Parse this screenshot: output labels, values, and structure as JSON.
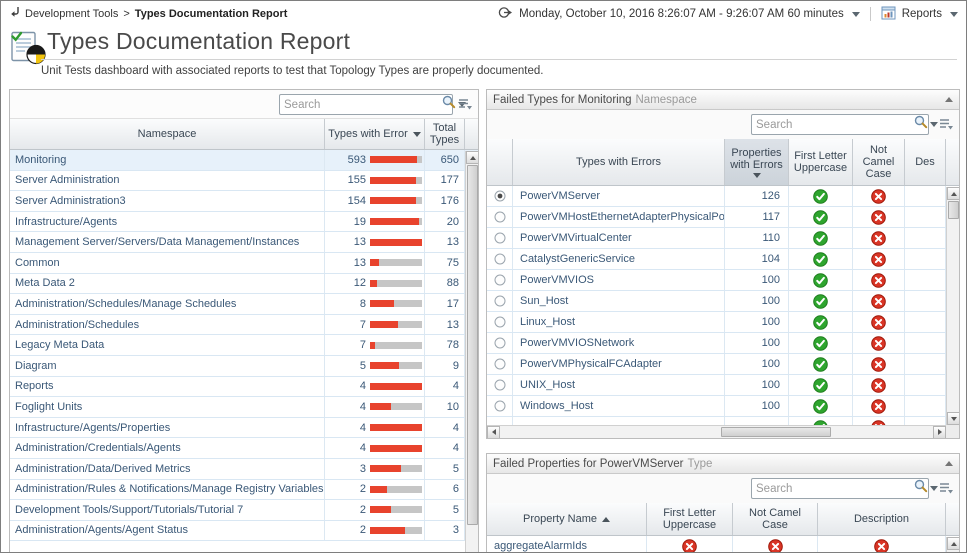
{
  "colors": {
    "bar_red": "#e8432d",
    "bar_track": "#c6c6c6",
    "pass_green": "#2ea52e",
    "fail_red": "#d93526",
    "selected_row": "#e7f1fa"
  },
  "breadcrumb": {
    "section": "Development Tools",
    "separator": ">",
    "page": "Types Documentation Report"
  },
  "topbar": {
    "time_range": "Monday, October 10, 2016 8:26:07 AM - 9:26:07 AM 60 minutes",
    "reports": "Reports"
  },
  "header": {
    "title": "Types Documentation Report",
    "subtitle": "Unit Tests dashboard with associated reports to test that Topology Types are properly documented."
  },
  "left_panel": {
    "search_placeholder": "Search",
    "columns": {
      "namespace": "Namespace",
      "errors": "Types with Error",
      "total_line1": "Total",
      "total_line2": "Types"
    },
    "rows": [
      {
        "namespace": "Monitoring",
        "errors": 593,
        "total": 650,
        "selected": true
      },
      {
        "namespace": "Server Administration",
        "errors": 155,
        "total": 177,
        "selected": false
      },
      {
        "namespace": "Server Administration3",
        "errors": 154,
        "total": 176,
        "selected": false
      },
      {
        "namespace": "Infrastructure/Agents",
        "errors": 19,
        "total": 20,
        "selected": false
      },
      {
        "namespace": "Management Server/Servers/Data Management/Instances",
        "errors": 13,
        "total": 13,
        "selected": false
      },
      {
        "namespace": "Common",
        "errors": 13,
        "total": 75,
        "selected": false
      },
      {
        "namespace": "Meta Data 2",
        "errors": 12,
        "total": 88,
        "selected": false
      },
      {
        "namespace": "Administration/Schedules/Manage Schedules",
        "errors": 8,
        "total": 17,
        "selected": false
      },
      {
        "namespace": "Administration/Schedules",
        "errors": 7,
        "total": 13,
        "selected": false
      },
      {
        "namespace": "Legacy Meta Data",
        "errors": 7,
        "total": 78,
        "selected": false
      },
      {
        "namespace": "Diagram",
        "errors": 5,
        "total": 9,
        "selected": false
      },
      {
        "namespace": "Reports",
        "errors": 4,
        "total": 4,
        "selected": false
      },
      {
        "namespace": "Foglight Units",
        "errors": 4,
        "total": 10,
        "selected": false
      },
      {
        "namespace": "Infrastructure/Agents/Properties",
        "errors": 4,
        "total": 4,
        "selected": false
      },
      {
        "namespace": "Administration/Credentials/Agents",
        "errors": 4,
        "total": 4,
        "selected": false
      },
      {
        "namespace": "Administration/Data/Derived Metrics",
        "errors": 3,
        "total": 5,
        "selected": false
      },
      {
        "namespace": "Administration/Rules & Notifications/Manage Registry Variables",
        "errors": 2,
        "total": 6,
        "selected": false
      },
      {
        "namespace": "Development Tools/Support/Tutorials/Tutorial 7",
        "errors": 2,
        "total": 5,
        "selected": false
      },
      {
        "namespace": "Administration/Agents/Agent Status",
        "errors": 2,
        "total": 3,
        "selected": false
      }
    ]
  },
  "failed_types": {
    "title": "Failed Types for Monitoring",
    "title_suffix": "Namespace",
    "search_placeholder": "Search",
    "columns": {
      "types": "Types with Errors",
      "props_line1": "Properties",
      "props_line2": "with Errors",
      "first_line1": "First Letter",
      "first_line2": "Uppercase",
      "camel_line1": "Not Camel",
      "camel_line2": "Case",
      "desc": "Des"
    },
    "rows": [
      {
        "name": "PowerVMServer",
        "props": 126,
        "first": "pass",
        "camel": "fail",
        "selected": true
      },
      {
        "name": "PowerVMHostEthernetAdapterPhysicalPort",
        "props": 117,
        "first": "pass",
        "camel": "fail",
        "selected": false
      },
      {
        "name": "PowerVMVirtualCenter",
        "props": 110,
        "first": "pass",
        "camel": "fail",
        "selected": false
      },
      {
        "name": "CatalystGenericService",
        "props": 104,
        "first": "pass",
        "camel": "fail",
        "selected": false
      },
      {
        "name": "PowerVMVIOS",
        "props": 100,
        "first": "pass",
        "camel": "fail",
        "selected": false
      },
      {
        "name": "Sun_Host",
        "props": 100,
        "first": "pass",
        "camel": "fail",
        "selected": false
      },
      {
        "name": "Linux_Host",
        "props": 100,
        "first": "pass",
        "camel": "fail",
        "selected": false
      },
      {
        "name": "PowerVMVIOSNetwork",
        "props": 100,
        "first": "pass",
        "camel": "fail",
        "selected": false
      },
      {
        "name": "PowerVMPhysicalFCAdapter",
        "props": 100,
        "first": "pass",
        "camel": "fail",
        "selected": false
      },
      {
        "name": "UNIX_Host",
        "props": 100,
        "first": "pass",
        "camel": "fail",
        "selected": false
      },
      {
        "name": "Windows_Host",
        "props": 100,
        "first": "pass",
        "camel": "fail",
        "selected": false
      }
    ],
    "partial_row": {
      "first": "pass",
      "camel": "fail"
    }
  },
  "failed_properties": {
    "title": "Failed Properties for PowerVMServer",
    "title_suffix": "Type",
    "search_placeholder": "Search",
    "columns": {
      "name": "Property Name",
      "first_line1": "First Letter",
      "first_line2": "Uppercase",
      "camel_line1": "Not Camel",
      "camel_line2": "Case",
      "desc": "Description"
    },
    "rows": [
      {
        "name": "aggregateAlarmIds",
        "first": "fail",
        "camel": "fail",
        "desc": "fail"
      }
    ]
  }
}
